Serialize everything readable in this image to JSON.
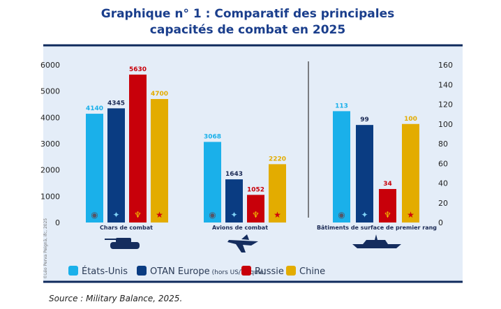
{
  "title_line1": "Graphique n° 1 : Comparatif des principales",
  "title_line2": "capacités de combat en 2025",
  "source": "Source : Military Balance, 2025.",
  "copyright": "©Léo Perva Peignă, ifc, 2025",
  "chart_data": {
    "type": "bar",
    "categories": [
      "Chars de combat",
      "Avions de combat",
      "Bâtiments de surface de premier rang"
    ],
    "category_icons": [
      "tank-icon",
      "fighter-jet-icon",
      "warship-icon"
    ],
    "series": [
      {
        "name": "États-Unis",
        "color": "#1ab0ea",
        "icon": "us-dod-seal-icon",
        "values": [
          4140,
          3068,
          113
        ]
      },
      {
        "name": "OTAN Europe",
        "name_note": "(hors US/Turquie)",
        "color": "#0a3c82",
        "icon": "nato-compass-icon",
        "values": [
          4345,
          1643,
          99
        ]
      },
      {
        "name": "Russie",
        "color": "#c8000a",
        "icon": "russian-eagle-icon",
        "values": [
          5630,
          1052,
          34
        ]
      },
      {
        "name": "Chine",
        "color": "#e3ac00",
        "icon": "china-star-icon",
        "values": [
          4700,
          2220,
          100
        ]
      }
    ],
    "left_axis": {
      "ylim": [
        0,
        6000
      ],
      "ticks": [
        "0",
        "1000",
        "2000",
        "3000",
        "4000",
        "5000",
        "6000"
      ],
      "applies_to": [
        "Chars de combat",
        "Avions de combat"
      ]
    },
    "right_axis": {
      "ylim": [
        0,
        160
      ],
      "ticks": [
        "0",
        "20",
        "40",
        "60",
        "80",
        "100",
        "120",
        "140",
        "160"
      ],
      "applies_to": [
        "Bâtiments de surface de premier rang"
      ]
    },
    "legend_position": "bottom",
    "grid": false
  },
  "colors": {
    "title": "#1a3e8c",
    "frame": "#0f2a5c",
    "panel_bg": "#e4edf8",
    "axis_text": "#222222"
  }
}
